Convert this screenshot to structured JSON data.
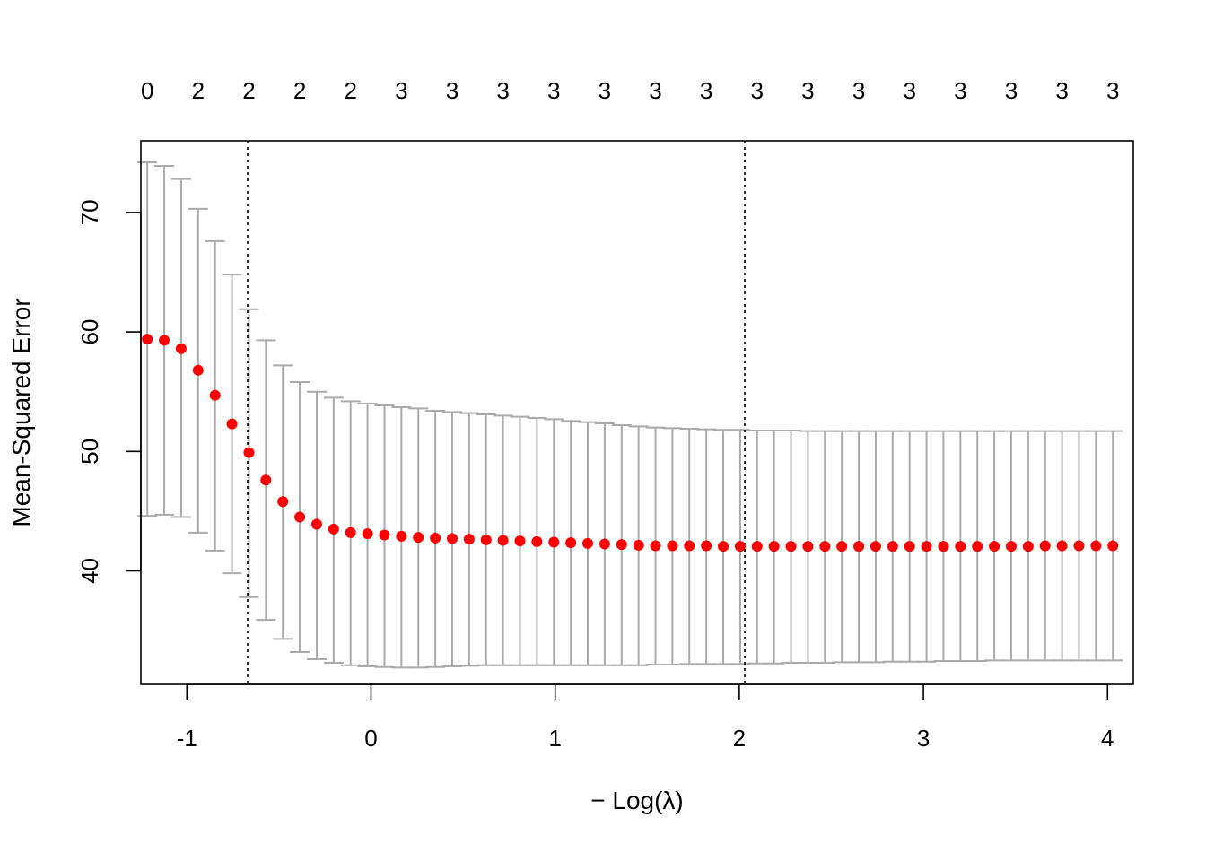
{
  "chart_data": {
    "type": "scatter",
    "title": "",
    "xlabel": "− Log(λ)",
    "ylabel": "Mean-Squared Error",
    "xlim": [
      -1.25,
      4.14
    ],
    "ylim": [
      30.5,
      76.0
    ],
    "x_ticks": [
      -1,
      0,
      1,
      2,
      3,
      4
    ],
    "x_tick_labels": [
      "-1",
      "0",
      "1",
      "2",
      "3",
      "4"
    ],
    "y_ticks": [
      40,
      50,
      60,
      70
    ],
    "y_tick_labels": [
      "40",
      "50",
      "60",
      "70"
    ],
    "top_axis_labels": [
      "0",
      "2",
      "2",
      "2",
      "2",
      "3",
      "3",
      "3",
      "3",
      "3",
      "3",
      "3",
      "3",
      "3",
      "3",
      "3",
      "3",
      "3",
      "3",
      "3"
    ],
    "vlines": [
      -0.67,
      2.03
    ],
    "grid": false,
    "legend": "none",
    "colors": {
      "point": "#ff0000",
      "errorbar": "#aaaaaa",
      "vline": "#000000"
    },
    "series": [
      {
        "x": [
          -1.215,
          -1.123,
          -1.031,
          -0.939,
          -0.847,
          -0.755,
          -0.663,
          -0.571,
          -0.479,
          -0.387,
          -0.295,
          -0.203,
          -0.111,
          -0.019,
          0.073,
          0.165,
          0.257,
          0.349,
          0.441,
          0.533,
          0.625,
          0.717,
          0.809,
          0.901,
          0.993,
          1.085,
          1.177,
          1.269,
          1.361,
          1.453,
          1.545,
          1.637,
          1.729,
          1.821,
          1.913,
          2.005,
          2.097,
          2.189,
          2.281,
          2.373,
          2.465,
          2.557,
          2.649,
          2.741,
          2.833,
          2.925,
          3.017,
          3.109,
          3.201,
          3.293,
          3.385,
          3.477,
          3.569,
          3.661,
          3.753,
          3.845,
          3.937,
          4.029
        ],
        "y": [
          59.4,
          59.3,
          58.6,
          56.8,
          54.7,
          52.3,
          49.9,
          47.6,
          45.8,
          44.5,
          43.9,
          43.5,
          43.2,
          43.1,
          43.0,
          42.9,
          42.8,
          42.75,
          42.7,
          42.65,
          42.6,
          42.55,
          42.5,
          42.45,
          42.4,
          42.35,
          42.3,
          42.25,
          42.2,
          42.15,
          42.1,
          42.1,
          42.1,
          42.1,
          42.05,
          42.05,
          42.05,
          42.05,
          42.05,
          42.05,
          42.05,
          42.05,
          42.05,
          42.05,
          42.05,
          42.05,
          42.05,
          42.05,
          42.05,
          42.05,
          42.05,
          42.05,
          42.05,
          42.1,
          42.1,
          42.1,
          42.1,
          42.1
        ],
        "lower": [
          44.6,
          44.7,
          44.5,
          43.2,
          41.7,
          39.8,
          37.8,
          35.9,
          34.3,
          33.2,
          32.6,
          32.3,
          32.1,
          32.0,
          31.95,
          31.9,
          31.9,
          31.95,
          32.0,
          32.05,
          32.1,
          32.1,
          32.1,
          32.1,
          32.1,
          32.1,
          32.1,
          32.1,
          32.1,
          32.1,
          32.15,
          32.15,
          32.2,
          32.2,
          32.2,
          32.2,
          32.25,
          32.25,
          32.3,
          32.3,
          32.3,
          32.35,
          32.35,
          32.35,
          32.4,
          32.4,
          32.4,
          32.45,
          32.45,
          32.45,
          32.5,
          32.5,
          32.5,
          32.5,
          32.5,
          32.5,
          32.5,
          32.5
        ],
        "upper": [
          74.2,
          73.9,
          72.8,
          70.3,
          67.6,
          64.8,
          61.9,
          59.3,
          57.2,
          55.8,
          55.0,
          54.5,
          54.2,
          54.0,
          53.85,
          53.7,
          53.6,
          53.4,
          53.3,
          53.2,
          53.1,
          53.0,
          52.9,
          52.8,
          52.7,
          52.55,
          52.45,
          52.35,
          52.2,
          52.1,
          52.0,
          51.95,
          51.9,
          51.85,
          51.8,
          51.8,
          51.75,
          51.75,
          51.75,
          51.7,
          51.7,
          51.7,
          51.7,
          51.7,
          51.7,
          51.7,
          51.7,
          51.7,
          51.7,
          51.7,
          51.7,
          51.7,
          51.7,
          51.7,
          51.7,
          51.7,
          51.7,
          51.7
        ]
      }
    ]
  }
}
